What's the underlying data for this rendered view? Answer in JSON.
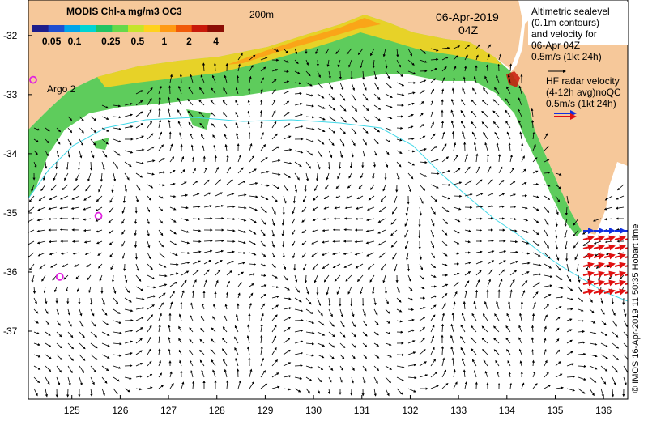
{
  "colorbar": {
    "title": "MODIS Chl-a mg/m3 OC3",
    "ticks": [
      "0.05",
      "0.1",
      "0.25",
      "0.5",
      "1",
      "2",
      "4"
    ],
    "colors": [
      "#1e1e8c",
      "#1f4fd1",
      "#00a5ea",
      "#00d4d4",
      "#22c463",
      "#66d94a",
      "#c6e52a",
      "#ffd21e",
      "#ff9a14",
      "#f05a0a",
      "#c8190a",
      "#8c0e05"
    ]
  },
  "labels": {
    "isobath": "200m",
    "date": "06-Apr-2019",
    "time": "04Z",
    "argo": "Argo 2",
    "altimetry_lines": [
      "Altimetric sealevel",
      "(0.1m contours)",
      "and velocity for",
      "06-Apr 04Z",
      "0.5m/s (1kt 24h)"
    ],
    "hf_lines": [
      "HF radar velocity",
      "(4-12h avg)noQC",
      "0.5m/s (1kt 24h)"
    ],
    "credit": "© IMOS 16-Apr-2019 11:50:35 Hobart time"
  },
  "axes": {
    "x_ticks": [
      "125",
      "126",
      "127",
      "128",
      "129",
      "130",
      "131",
      "132",
      "133",
      "134",
      "135",
      "136"
    ],
    "y_ticks": [
      "-32",
      "-33",
      "-34",
      "-35",
      "-36",
      "-37"
    ],
    "xlim": [
      124.1,
      136.5
    ],
    "ylim": [
      -38.15,
      -31.4
    ]
  },
  "argo_floats": [
    {
      "lon": 124.2,
      "lat": -32.75
    },
    {
      "lon": 125.55,
      "lat": -35.05
    },
    {
      "lon": 124.75,
      "lat": -36.08
    }
  ],
  "colors": {
    "land": "#f6c89a",
    "ocean": "#ffffff",
    "isobath": "#40d8e8",
    "arrow": "#000000",
    "hf_arrow_red": "#e01010",
    "hf_arrow_blue": "#1030e0",
    "argo": "#e020e0"
  }
}
